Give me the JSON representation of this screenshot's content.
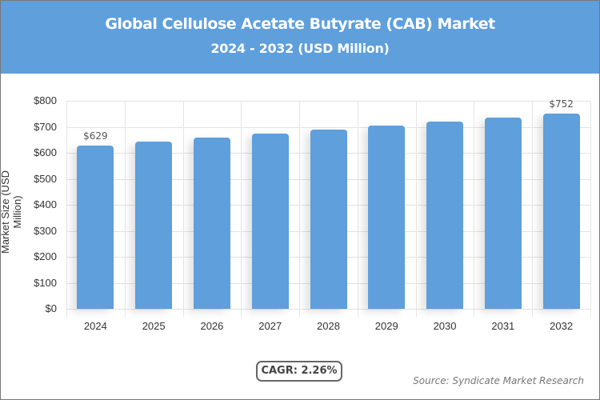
{
  "header": {
    "title": "Global Cellulose Acetate Butyrate (CAB) Market",
    "subtitle": "2024 - 2032 (USD Million)"
  },
  "colors": {
    "bar": "#5e9fdc",
    "header_bg": "#5e9fdc"
  },
  "chart_data": {
    "type": "bar",
    "title": "Global Cellulose Acetate Butyrate (CAB) Market",
    "subtitle": "2024 - 2032 (USD Million)",
    "categories": [
      "2024",
      "2025",
      "2026",
      "2027",
      "2028",
      "2029",
      "2030",
      "2031",
      "2032"
    ],
    "values": [
      629,
      643,
      658,
      673,
      688,
      704,
      720,
      736,
      752
    ],
    "data_labels": {
      "0": "$629",
      "8": "$752"
    },
    "xlabel": "",
    "ylabel": "Market Size (USD Million)",
    "ylim": [
      0,
      800
    ],
    "yticks": [
      "$0",
      "$100",
      "$200",
      "$300",
      "$400",
      "$500",
      "$600",
      "$700",
      "$800"
    ],
    "grid": true,
    "legend": "none"
  },
  "footer": {
    "cagr": "CAGR: 2.26%",
    "source": "Source: Syndicate Market Research"
  }
}
